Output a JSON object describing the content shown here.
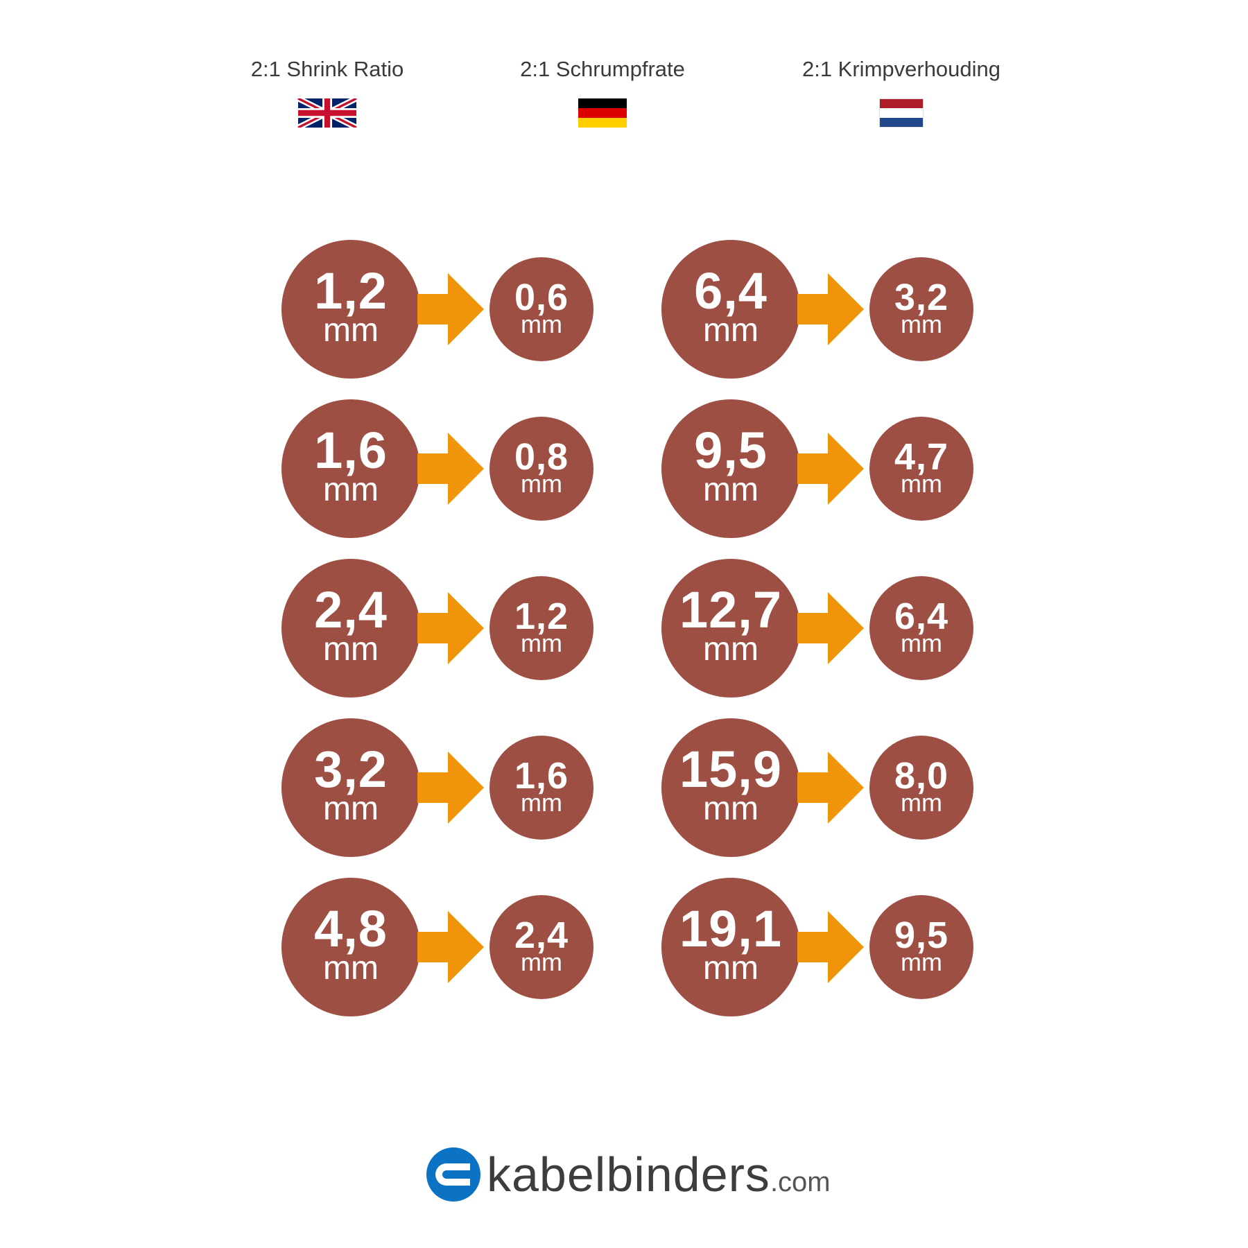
{
  "headers": [
    {
      "title": "2:1 Shrink Ratio",
      "flag": "uk-flag-icon"
    },
    {
      "title": "2:1 Schrumpfrate",
      "flag": "germany-flag-icon"
    },
    {
      "title": "2:1 Krimpverhouding",
      "flag": "netherlands-flag-icon"
    }
  ],
  "colors": {
    "circle": "#9e4f44",
    "arrow": "#f0950a",
    "logo_blue": "#0c72c4",
    "text": "#3a3a3a"
  },
  "left_column": [
    {
      "before": "1,2",
      "after": "0,6",
      "unit": "mm"
    },
    {
      "before": "1,6",
      "after": "0,8",
      "unit": "mm"
    },
    {
      "before": "2,4",
      "after": "1,2",
      "unit": "mm"
    },
    {
      "before": "3,2",
      "after": "1,6",
      "unit": "mm"
    },
    {
      "before": "4,8",
      "after": "2,4",
      "unit": "mm"
    }
  ],
  "right_column": [
    {
      "before": "6,4",
      "after": "3,2",
      "unit": "mm"
    },
    {
      "before": "9,5",
      "after": "4,7",
      "unit": "mm"
    },
    {
      "before": "12,7",
      "after": "6,4",
      "unit": "mm"
    },
    {
      "before": "15,9",
      "after": "8,0",
      "unit": "mm"
    },
    {
      "before": "19,1",
      "after": "9,5",
      "unit": "mm"
    }
  ],
  "logo": {
    "name": "kabelbinders",
    "tld": ".com",
    "icon": "kabelbinders-logo-icon"
  }
}
